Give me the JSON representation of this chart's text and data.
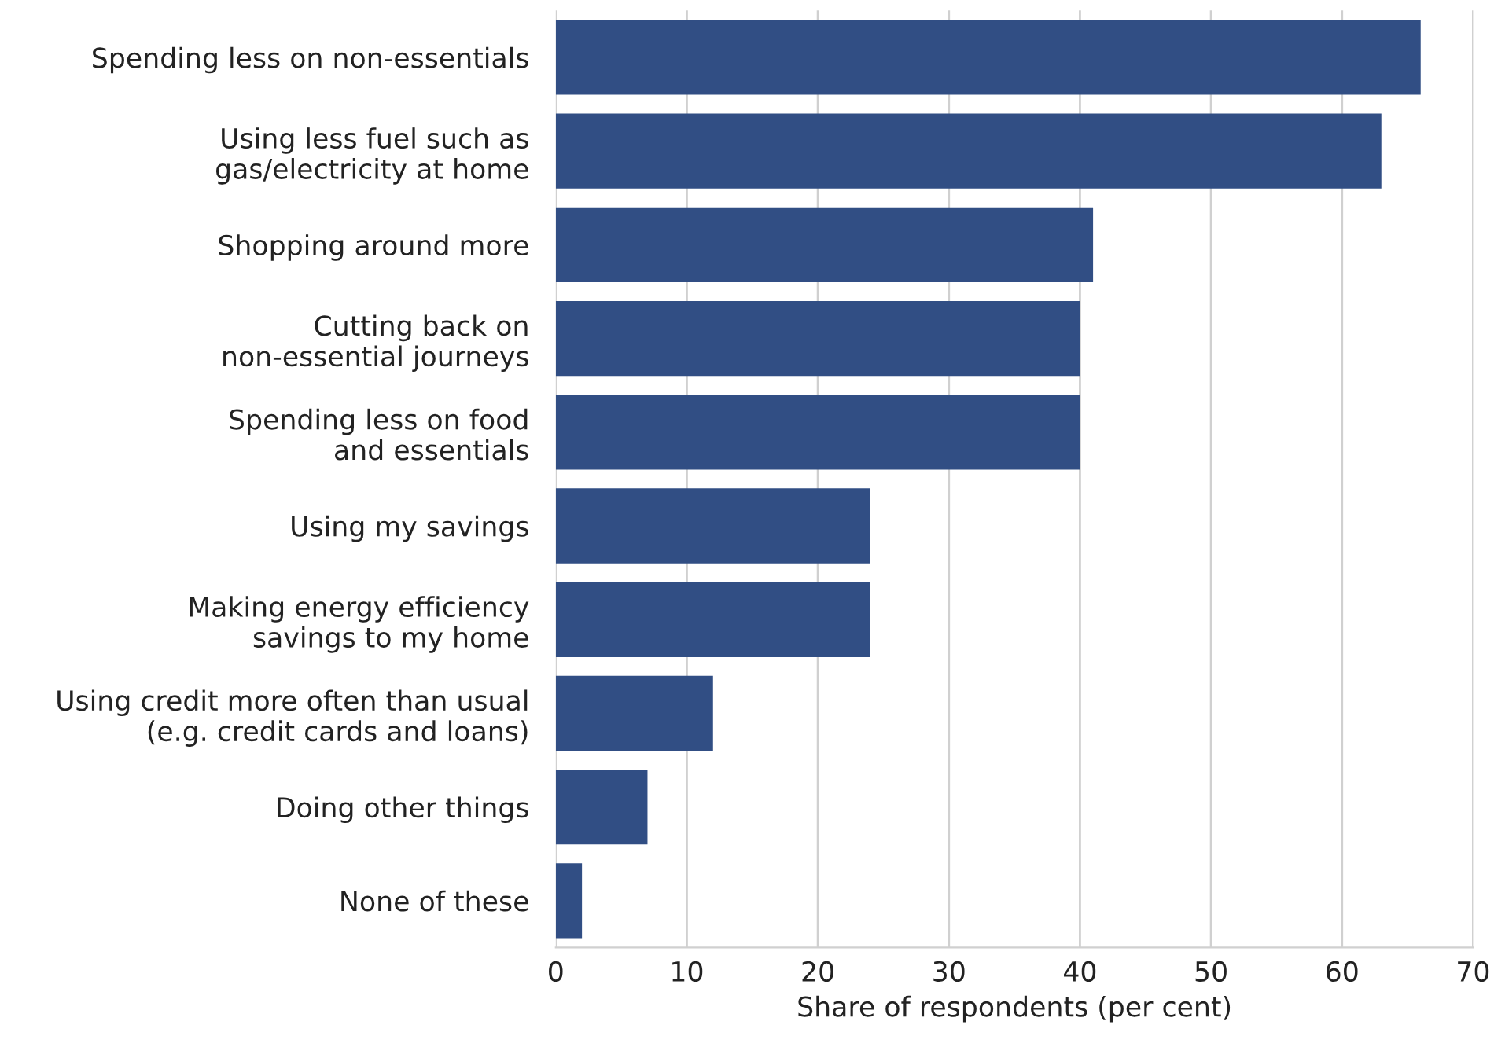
{
  "chart_data": {
    "type": "bar",
    "orientation": "horizontal",
    "xlabel": "Share of respondents (per cent)",
    "categories": [
      "Spending less on non-essentials",
      "Using less fuel such as\ngas/electricity at home",
      "Shopping around more",
      "Cutting back on\nnon-essential journeys",
      "Spending less on food\nand essentials",
      "Using my savings",
      "Making energy efficiency\nsavings to my home",
      "Using credit more often than usual\n(e.g. credit cards and loans)",
      "Doing other things",
      "None of these"
    ],
    "values": [
      66,
      63,
      41,
      40,
      40,
      24,
      24,
      12,
      7,
      2
    ],
    "color": "#314e84",
    "xlim": [
      0,
      70
    ],
    "xticks": [
      0,
      10,
      20,
      30,
      40,
      50,
      60,
      70
    ],
    "grid": "x"
  }
}
